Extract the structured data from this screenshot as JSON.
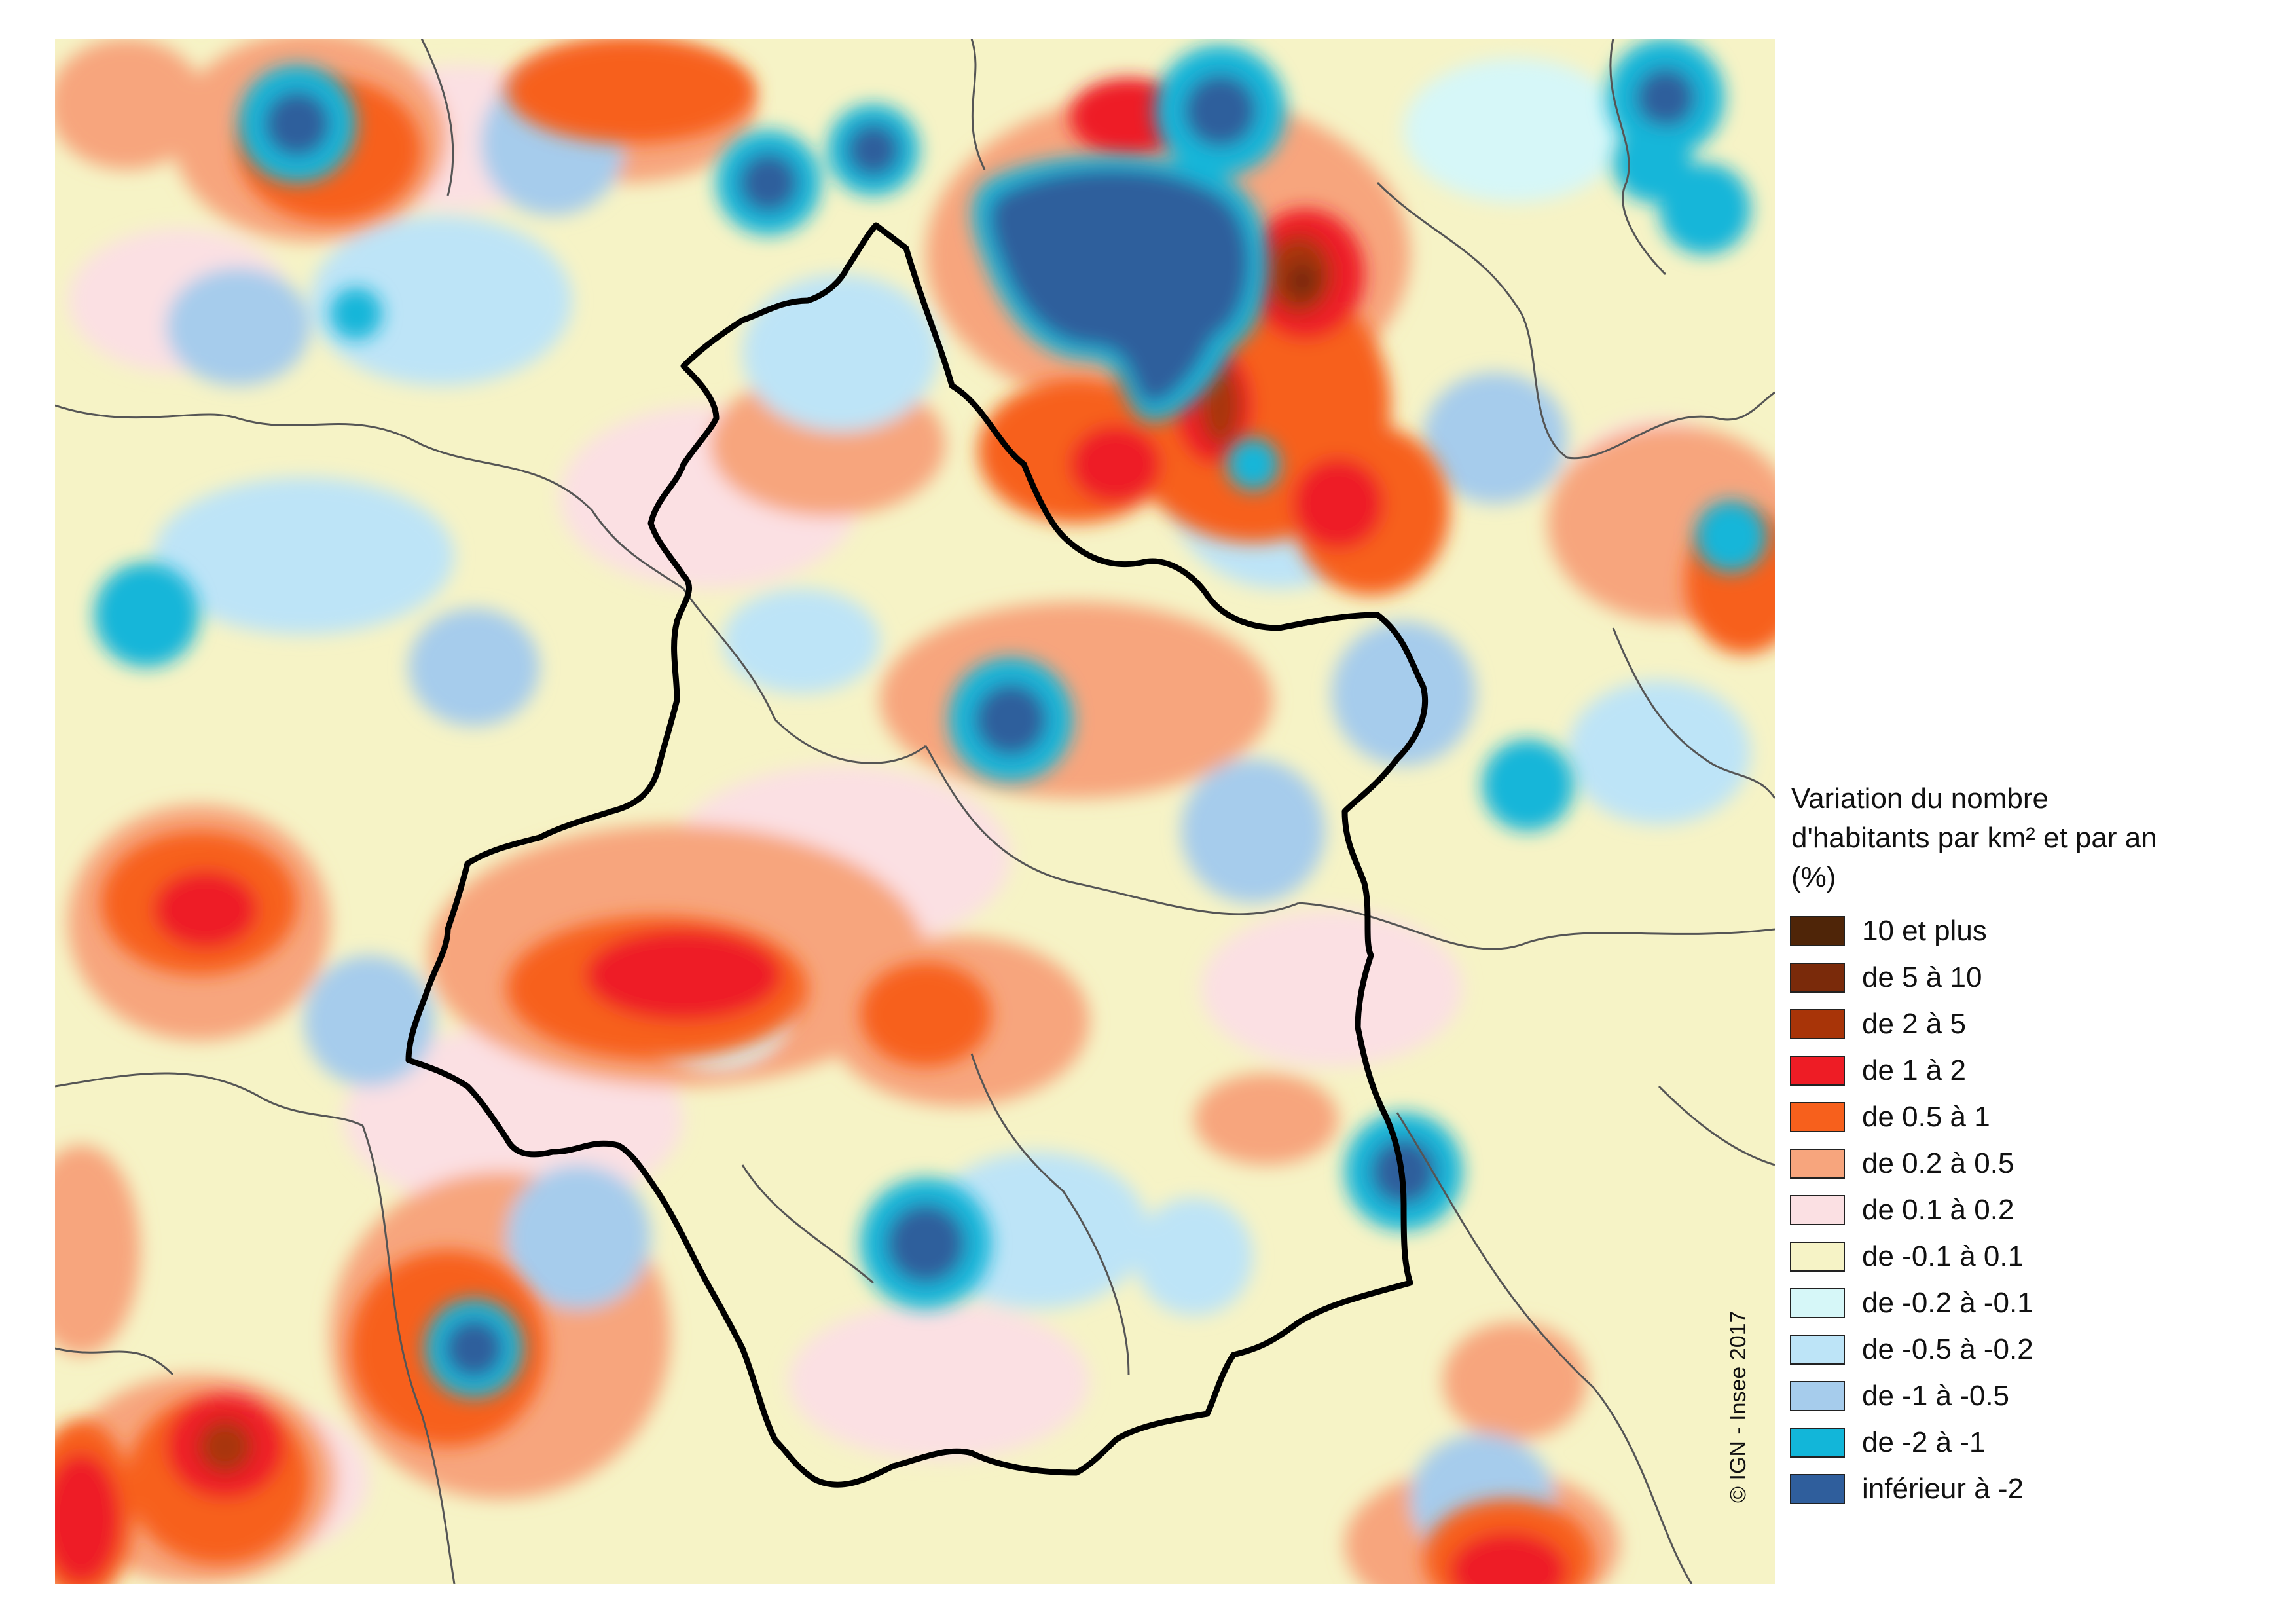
{
  "legend": {
    "title": "Variation du nombre d'habitants par km² et par an (%)",
    "classes": [
      {
        "label": "10 et plus",
        "color": "#4f2508"
      },
      {
        "label": "de 5 à 10",
        "color": "#7a2a0a"
      },
      {
        "label": "de 2 à 5",
        "color": "#a83408"
      },
      {
        "label": "de 1 à 2",
        "color": "#ee1c25"
      },
      {
        "label": "de 0.5 à 1",
        "color": "#f7601c"
      },
      {
        "label": "de 0.2 à 0.5",
        "color": "#f7a57d"
      },
      {
        "label": "de 0.1 à 0.2",
        "color": "#fbe0e3"
      },
      {
        "label": "de -0.1 à 0.1",
        "color": "#f6f3c6"
      },
      {
        "label": "de -0.2 à -0.1",
        "color": "#d6f7f8"
      },
      {
        "label": "de -0.5 à -0.2",
        "color": "#bde4f7"
      },
      {
        "label": "de -1 à -0.5",
        "color": "#a6ccec"
      },
      {
        "label": "de -2 à -1",
        "color": "#12b6d9"
      },
      {
        "label": "inférieur à -2",
        "color": "#2f5e9c"
      }
    ]
  },
  "credit": "© IGN - Insee 2017"
}
